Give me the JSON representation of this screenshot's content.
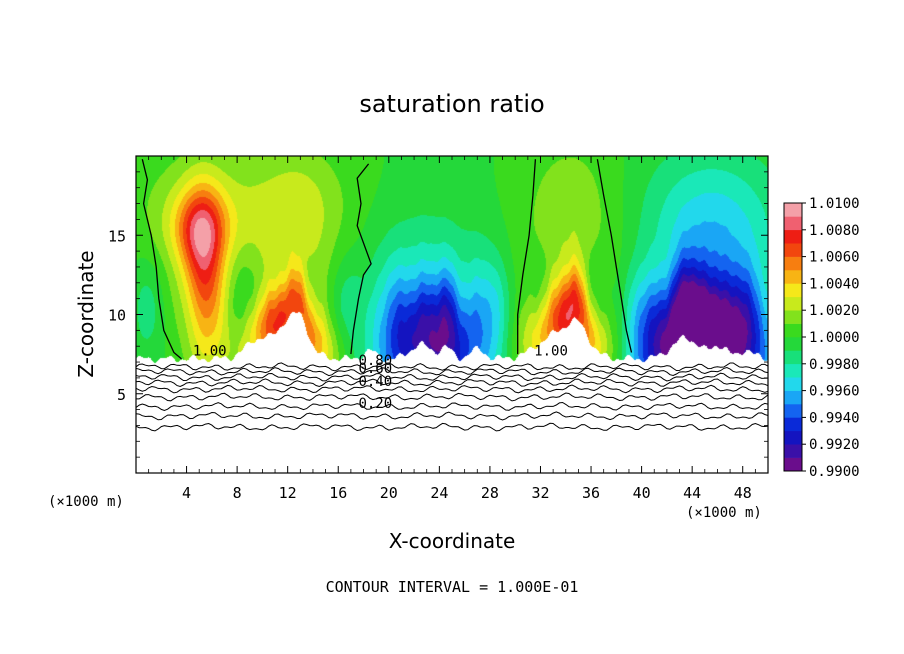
{
  "chart_data": {
    "type": "heatmap",
    "title": "saturation ratio",
    "xlabel": "X-coordinate",
    "ylabel": "Z-coordinate",
    "x_unit_left": "(×1000 m)",
    "x_unit_right": "(×1000 m)",
    "footer": "CONTOUR INTERVAL = 1.000E-01",
    "xlim": [
      0,
      50
    ],
    "ylim": [
      0,
      20
    ],
    "x_ticks": [
      4,
      8,
      12,
      16,
      20,
      24,
      28,
      32,
      36,
      40,
      44,
      48
    ],
    "x_tick_labels": [
      "4",
      "8",
      "12",
      "16",
      "20",
      "24",
      "28",
      "32",
      "36",
      "40",
      "44",
      "48"
    ],
    "y_ticks": [
      5,
      10,
      15
    ],
    "y_tick_labels": [
      "5",
      "10",
      "15"
    ],
    "colorbar": {
      "levels": [
        0.99,
        0.991,
        0.992,
        0.993,
        0.994,
        0.995,
        0.996,
        0.997,
        0.998,
        0.999,
        1.0,
        1.001,
        1.002,
        1.003,
        1.004,
        1.005,
        1.006,
        1.007,
        1.008,
        1.009,
        1.01
      ],
      "tick_values": [
        0.99,
        0.992,
        0.994,
        0.996,
        0.998,
        1.0,
        1.002,
        1.004,
        1.006,
        1.008,
        1.01
      ],
      "tick_labels": [
        "0.9900",
        "0.9920",
        "0.9940",
        "0.9960",
        "0.9980",
        "1.0000",
        "1.0020",
        "1.0040",
        "1.0060",
        "1.0080",
        "1.0100"
      ],
      "colors": [
        "#6a0d8c",
        "#3a10a8",
        "#1414c0",
        "#0a2ad8",
        "#1464f0",
        "#1aa6f5",
        "#22d8ec",
        "#1ae8b8",
        "#18e07a",
        "#24d83a",
        "#3ada1e",
        "#82e21c",
        "#c8ea1c",
        "#f5e81a",
        "#f8b414",
        "#f77e10",
        "#f2460e",
        "#ee1e14",
        "#f06070",
        "#f4a0a8"
      ]
    },
    "surface_level_km": 7.2,
    "contour_labels": [
      {
        "text": "1.00",
        "x": 4.5,
        "y": 7.4
      },
      {
        "text": "1.00",
        "x": 31.5,
        "y": 7.4
      },
      {
        "text": "0.80",
        "x": 17.6,
        "y": 6.8
      },
      {
        "text": "0.60",
        "x": 17.6,
        "y": 6.3
      },
      {
        "text": "0.40",
        "x": 17.6,
        "y": 5.5
      },
      {
        "text": "0.20",
        "x": 17.6,
        "y": 4.1
      }
    ],
    "lower_contours": [
      {
        "level": 0.9,
        "base_z": 6.7
      },
      {
        "level": 0.8,
        "base_z": 6.4
      },
      {
        "level": 0.7,
        "base_z": 6.05
      },
      {
        "level": 0.6,
        "base_z": 5.7
      },
      {
        "level": 0.5,
        "base_z": 5.3
      },
      {
        "level": 0.4,
        "base_z": 4.8
      },
      {
        "level": 0.3,
        "base_z": 4.2
      },
      {
        "level": 0.2,
        "base_z": 3.6
      },
      {
        "level": 0.1,
        "base_z": 2.9
      }
    ],
    "upper_contours_1_00": [
      {
        "points": [
          [
            0.5,
            19.8
          ],
          [
            0.9,
            18.5
          ],
          [
            0.6,
            17
          ],
          [
            1.2,
            15
          ],
          [
            1.6,
            13
          ],
          [
            1.8,
            11
          ],
          [
            2.2,
            9
          ],
          [
            3.0,
            7.6
          ],
          [
            3.6,
            7.2
          ]
        ]
      },
      {
        "points": [
          [
            18.4,
            19.5
          ],
          [
            17.5,
            18.6
          ],
          [
            17.8,
            17
          ],
          [
            17.5,
            15.6
          ],
          [
            18.6,
            13.2
          ],
          [
            18.0,
            12.5
          ],
          [
            17.6,
            11
          ],
          [
            17.2,
            9
          ],
          [
            17.0,
            7.5
          ]
        ]
      },
      {
        "points": [
          [
            31.6,
            19.8
          ],
          [
            31.4,
            17.5
          ],
          [
            31.1,
            15
          ],
          [
            30.6,
            12.5
          ],
          [
            30.2,
            10
          ],
          [
            30.2,
            7.5
          ]
        ]
      },
      {
        "points": [
          [
            36.5,
            19.8
          ],
          [
            37.0,
            17.5
          ],
          [
            37.6,
            15
          ],
          [
            38.0,
            13
          ],
          [
            38.4,
            11
          ],
          [
            38.8,
            9
          ],
          [
            39.2,
            7.6
          ]
        ]
      }
    ]
  }
}
